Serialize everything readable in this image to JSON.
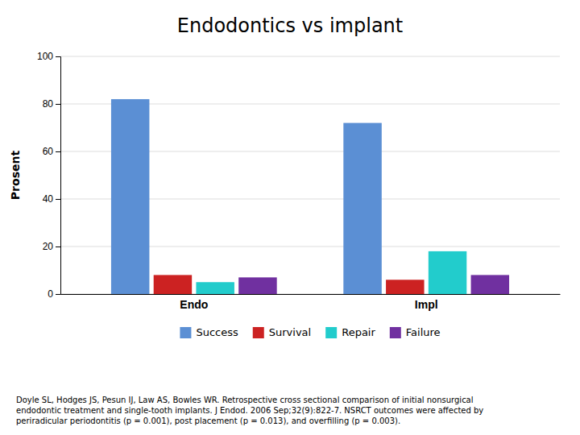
{
  "chart_data": {
    "type": "bar",
    "title": "Endodontics vs implant",
    "ylabel": "Prosent",
    "categories": [
      "Endo",
      "Impl"
    ],
    "series": [
      {
        "name": "Success",
        "color": "#5B8FD4",
        "values": [
          82,
          72
        ]
      },
      {
        "name": "Survival",
        "color": "#CC2222",
        "values": [
          8,
          6
        ]
      },
      {
        "name": "Repair",
        "color": "#22CCCC",
        "values": [
          5,
          18
        ]
      },
      {
        "name": "Failure",
        "color": "#7030A0",
        "values": [
          7,
          8
        ]
      }
    ],
    "ylim": [
      0,
      100
    ],
    "yticks": [
      0,
      20,
      40,
      60,
      80,
      100
    ],
    "grid": true,
    "legend": "bottom",
    "caption": "Doyle SL, Hodges JS, Pesun IJ, Law AS, Bowles WR. Retrospective cross sectional comparison of initial nonsurgical\nendodontic treatment and single-tooth implants. J Endod. 2006 Sep;32(9):822-7. NSRCT outcomes were affected by\nperiradicular periodontitis (p = 0.001), post placement (p = 0.013), and overfilling (p = 0.003)."
  }
}
